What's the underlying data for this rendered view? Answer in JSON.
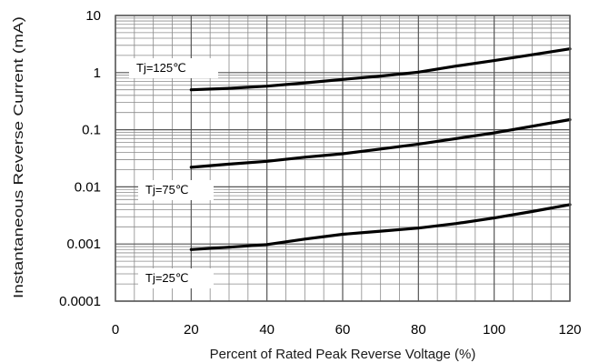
{
  "chart_data": {
    "type": "line",
    "xlabel": "Percent of  Rated Peak Reverse Voltage (%)",
    "ylabel": "Instantaneous Reverse Current (mA)",
    "yscale": "log",
    "xlim": [
      0,
      120
    ],
    "ylim": [
      0.0001,
      10
    ],
    "xticks": [
      "0",
      "20",
      "40",
      "60",
      "80",
      "100",
      "120"
    ],
    "yticks": [
      "0.0001",
      "0.001",
      "0.01",
      "0.1",
      "1",
      "10"
    ],
    "grid": true,
    "series": [
      {
        "name": "Tj=125℃",
        "x": [
          20,
          30,
          40,
          50,
          60,
          70,
          80,
          90,
          100,
          110,
          120
        ],
        "y": [
          0.5,
          0.53,
          0.58,
          0.66,
          0.76,
          0.87,
          1.02,
          1.3,
          1.62,
          2.05,
          2.6
        ]
      },
      {
        "name": "Tj=75℃",
        "x": [
          20,
          30,
          40,
          50,
          60,
          70,
          80,
          90,
          100,
          110,
          120
        ],
        "y": [
          0.022,
          0.025,
          0.028,
          0.033,
          0.038,
          0.046,
          0.056,
          0.07,
          0.088,
          0.115,
          0.15
        ]
      },
      {
        "name": "Tj=25℃",
        "x": [
          20,
          30,
          40,
          50,
          60,
          70,
          80,
          90,
          100,
          110,
          120
        ],
        "y": [
          0.0008,
          0.00088,
          0.00098,
          0.00122,
          0.00148,
          0.00168,
          0.0019,
          0.00228,
          0.00285,
          0.0037,
          0.0049
        ]
      }
    ]
  }
}
